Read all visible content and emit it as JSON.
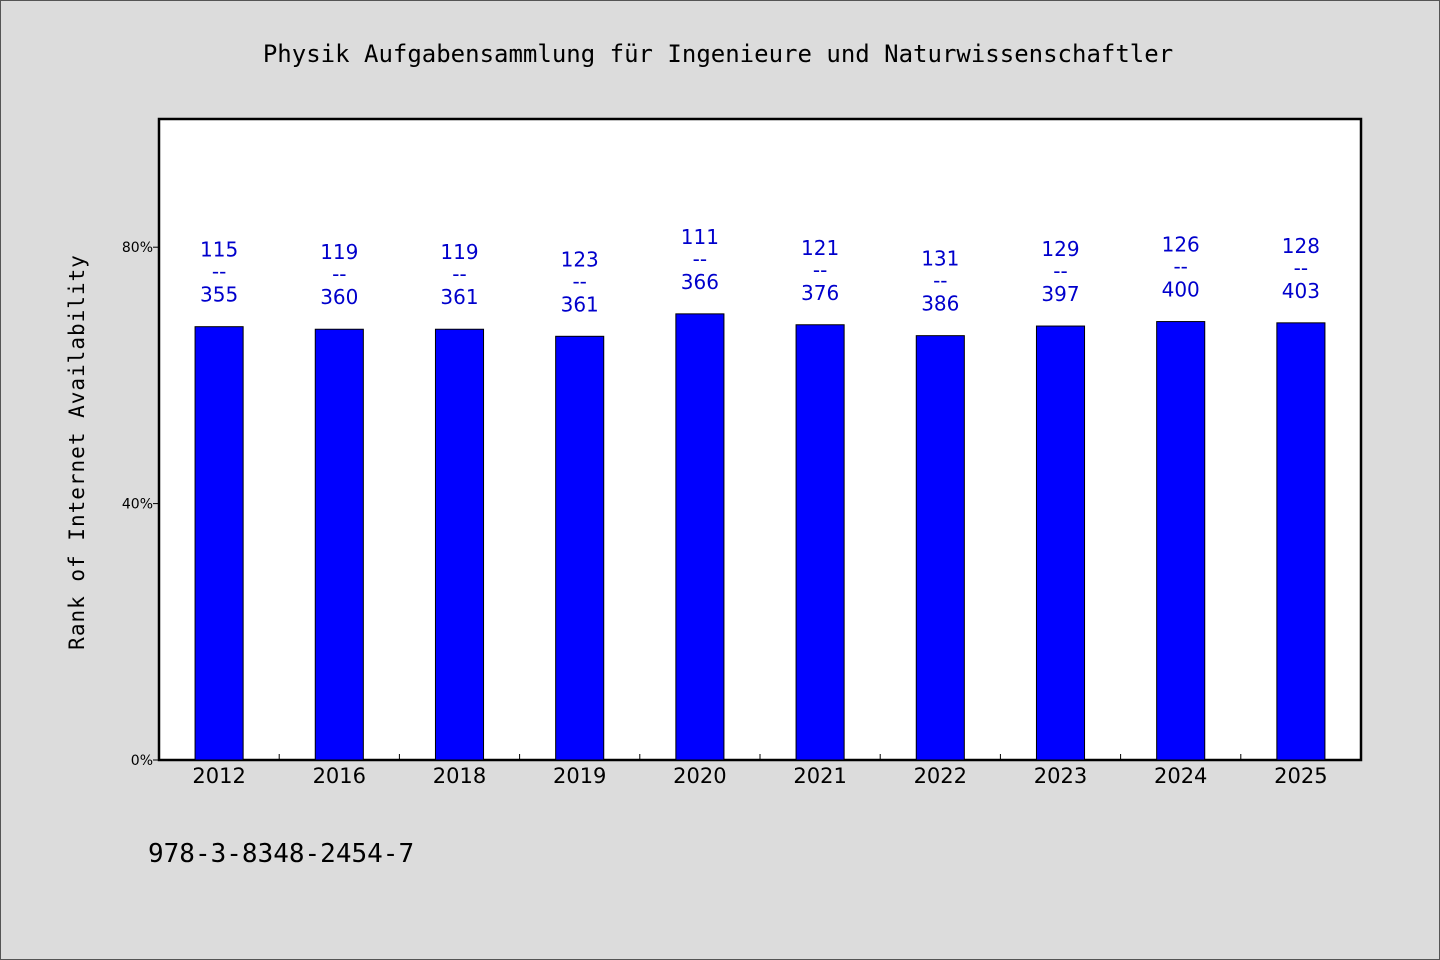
{
  "chart_data": {
    "type": "bar",
    "title": "Physik Aufgabensammlung für Ingenieure und Naturwissenschaftler",
    "ylabel": "Rank of Internet Availability",
    "xlabel": "",
    "ylim": [
      0,
      100
    ],
    "yticks": [
      {
        "value": 0,
        "label": "0%"
      },
      {
        "value": 40,
        "label": "40%"
      },
      {
        "value": 80,
        "label": "80%"
      }
    ],
    "categories": [
      "2012",
      "2016",
      "2018",
      "2019",
      "2020",
      "2021",
      "2022",
      "2023",
      "2024",
      "2025"
    ],
    "values": [
      67.6,
      67.2,
      67.2,
      66.1,
      69.6,
      67.9,
      66.2,
      67.7,
      68.4,
      68.2
    ],
    "labels": [
      {
        "rank": "115",
        "sep": "--",
        "total": "355"
      },
      {
        "rank": "119",
        "sep": "--",
        "total": "360"
      },
      {
        "rank": "119",
        "sep": "--",
        "total": "361"
      },
      {
        "rank": "123",
        "sep": "--",
        "total": "361"
      },
      {
        "rank": "111",
        "sep": "--",
        "total": "366"
      },
      {
        "rank": "121",
        "sep": "--",
        "total": "376"
      },
      {
        "rank": "131",
        "sep": "--",
        "total": "386"
      },
      {
        "rank": "129",
        "sep": "--",
        "total": "397"
      },
      {
        "rank": "126",
        "sep": "--",
        "total": "400"
      },
      {
        "rank": "128",
        "sep": "--",
        "total": "403"
      }
    ],
    "grid": false,
    "legend": "none",
    "bar_color": "#0000ff",
    "label_color": "#0000cc"
  },
  "footer": {
    "isbn": "978-3-8348-2454-7"
  }
}
